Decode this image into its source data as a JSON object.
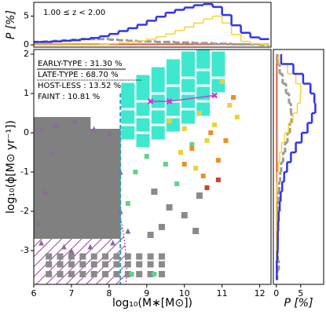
{
  "chart_data": [
    {
      "type": "scatter",
      "xlabel": "log₁₀(M∗[M⊙])",
      "ylabel": "log₁₀(ϕ[M⊙ yr⁻¹])",
      "xlim": [
        6,
        12.3
      ],
      "ylim": [
        -3.86,
        2.12
      ],
      "xticks": [
        6,
        7,
        8,
        9,
        10,
        11,
        12
      ],
      "yticks": [
        -3,
        -2,
        -1,
        0,
        1,
        2
      ],
      "annotations": [
        "EARLY-TYPE : 31.30  %",
        "LATE-TYPE   : 68.70  %",
        "HOST-LESS  : 13.52 %",
        "FAINT          : 10.81  %"
      ],
      "vline": 8.3,
      "vline_color": "#1fa3c9",
      "series": [
        {
          "color": "#808080",
          "marker": "square",
          "size": 20,
          "x": [
            6.1,
            6.1,
            6.1,
            6.1,
            6.1,
            6.1,
            6.1,
            6.1,
            6.5,
            6.5,
            6.5,
            6.5,
            6.5,
            6.5,
            6.5,
            6.5,
            6.9,
            6.9,
            6.9,
            6.9,
            6.9,
            6.9,
            6.9,
            6.9,
            7.3,
            7.3,
            7.3,
            7.3,
            7.3,
            7.3,
            7.3,
            7.3,
            7.7,
            7.7,
            7.7,
            7.7,
            7.7,
            7.7,
            7.7,
            8.1,
            8.1,
            8.1,
            8.1,
            8.1,
            8.1,
            8.1
          ],
          "y": [
            -2.5,
            -2.1,
            -1.7,
            -1.3,
            -0.9,
            -0.5,
            -0.1,
            0.2,
            -2.5,
            -2.1,
            -1.7,
            -1.3,
            -0.9,
            -0.5,
            -0.1,
            0.2,
            -2.5,
            -2.1,
            -1.7,
            -1.3,
            -0.9,
            -0.5,
            -0.1,
            0.2,
            -2.5,
            -2.1,
            -1.7,
            -1.3,
            -0.9,
            -0.5,
            -0.1,
            0.2,
            -2.5,
            -2.1,
            -1.7,
            -1.3,
            -0.9,
            -0.5,
            -0.1,
            -2.5,
            -2.1,
            -1.7,
            -1.3,
            -0.9,
            -0.5,
            -0.1
          ]
        },
        {
          "color": "#8a8a8a",
          "marker": "square",
          "size": 8,
          "x": [
            6.4,
            6.7,
            7.0,
            7.3,
            7.6,
            7.9,
            8.2,
            8.5,
            8.8,
            9.1,
            9.4,
            6.4,
            6.7,
            7.0,
            7.3,
            7.6,
            7.9,
            8.2,
            8.5,
            8.8,
            9.1,
            9.4,
            6.4,
            6.7,
            7.0,
            7.3,
            7.6,
            7.9,
            8.2,
            8.5,
            8.8,
            9.1,
            9.4,
            9.2,
            9.6,
            10.0,
            9.4,
            10.4,
            9.1,
            10.3
          ],
          "y": [
            -3.15,
            -3.15,
            -3.15,
            -3.15,
            -3.15,
            -3.15,
            -3.15,
            -3.15,
            -3.15,
            -3.15,
            -3.15,
            -3.35,
            -3.35,
            -3.35,
            -3.35,
            -3.35,
            -3.35,
            -3.35,
            -3.35,
            -3.35,
            -3.35,
            -3.35,
            -3.6,
            -3.6,
            -3.6,
            -3.6,
            -3.6,
            -3.6,
            -3.6,
            -3.6,
            -3.6,
            -3.6,
            -3.6,
            -1.5,
            -1.9,
            -2.1,
            -2.4,
            -1.6,
            -2.6,
            -2.5
          ]
        },
        {
          "color": "#8b6a99",
          "marker": "triangle",
          "size": 7,
          "x": [
            6.2,
            6.6,
            7.1,
            7.6,
            8.0,
            6.5,
            6.3,
            7.0,
            7.5,
            8.1,
            6.2,
            8.3,
            8.3,
            6.8,
            8.5,
            6.1
          ],
          "y": [
            0.1,
            0.2,
            0.3,
            0.1,
            0.0,
            -0.5,
            -1.5,
            -3.0,
            -2.9,
            -2.8,
            -2.8,
            -2.0,
            -1.0,
            -2.9,
            -2.5,
            -2.3
          ]
        },
        {
          "color": "#3ee8cf",
          "marker": "square",
          "size": 17,
          "x": [
            8.5,
            8.5,
            8.5,
            8.5,
            8.9,
            8.9,
            8.9,
            8.9,
            8.9,
            9.3,
            9.3,
            9.3,
            9.3,
            9.3,
            9.7,
            9.7,
            9.7,
            9.7,
            9.7,
            10.1,
            10.1,
            10.1,
            10.1,
            10.1,
            10.5,
            10.5,
            10.5,
            10.5,
            10.5,
            10.9,
            10.9,
            10.9
          ],
          "y": [
            0.0,
            0.4,
            0.8,
            1.1,
            -0.2,
            0.2,
            0.6,
            1.0,
            1.3,
            0.0,
            0.4,
            0.8,
            1.2,
            1.5,
            0.2,
            0.6,
            1.0,
            1.4,
            1.7,
            0.4,
            0.8,
            1.2,
            1.6,
            1.9,
            0.6,
            1.0,
            1.4,
            1.8,
            2.0,
            1.2,
            1.6,
            1.9
          ]
        },
        {
          "color": "#5ed48a",
          "marker": "square",
          "size": 6,
          "x": [
            9.0,
            8.7,
            9.5,
            8.5,
            10.2,
            9.8,
            8.6,
            9.2
          ],
          "y": [
            -0.6,
            -1.0,
            -0.8,
            -1.8,
            -0.3,
            -1.3,
            -3.6,
            -3.6
          ]
        },
        {
          "color": "#e8d23a",
          "marker": "square",
          "size": 6,
          "x": [
            9.6,
            10.0,
            10.4,
            10.8,
            11.2,
            9.9,
            10.6,
            11.0,
            10.3,
            11.4
          ],
          "y": [
            0.3,
            0.1,
            0.5,
            0.2,
            0.7,
            -0.5,
            -0.2,
            1.3,
            -0.9,
            0.4
          ]
        },
        {
          "color": "#e8902a",
          "marker": "square",
          "size": 6,
          "x": [
            10.2,
            10.7,
            10.9,
            11.1,
            10.5,
            11.3,
            10.0
          ],
          "y": [
            -0.4,
            0.0,
            -0.7,
            -0.2,
            -1.1,
            0.9,
            -0.8
          ]
        },
        {
          "color": "#d0402a",
          "marker": "square",
          "size": 6,
          "x": [
            10.6,
            10.9
          ],
          "y": [
            -1.4,
            -1.2
          ]
        },
        {
          "color": "#c83cd8",
          "marker": "cross",
          "size": 6,
          "line": true,
          "x": [
            9.1,
            9.6,
            10.8
          ],
          "y": [
            0.8,
            0.8,
            0.95
          ]
        }
      ]
    },
    {
      "type": "histogram",
      "orientation": "vertical",
      "ylabel": "P [%]",
      "annotation": "1.00 ≤ z < 2.00",
      "xlim": [
        6,
        12.3
      ],
      "ylim": [
        -0.4,
        7.4
      ],
      "yticks": [
        0,
        5
      ],
      "bins": [
        6,
        6.25,
        6.5,
        6.75,
        7,
        7.25,
        7.5,
        7.75,
        8,
        8.25,
        8.5,
        8.75,
        9,
        9.25,
        9.5,
        9.75,
        10,
        10.25,
        10.5,
        10.75,
        11,
        11.25,
        11.5,
        11.75,
        12,
        12.25
      ],
      "series": [
        {
          "color": "#e05a3a",
          "dash": false,
          "width": 2,
          "values": [
            0.1,
            0.1,
            0.1,
            0.1,
            0.1,
            0.1,
            0.1,
            0.1,
            0.1,
            0.1,
            0.1,
            0.1,
            0.1,
            0.1,
            0.1,
            0.1,
            0.1,
            0.1,
            0.1,
            0.1,
            0.1,
            0.1,
            0.1,
            0.1,
            0.1
          ]
        },
        {
          "color": "#9a9a9a",
          "dash": true,
          "width": 3,
          "values": [
            0.5,
            0.6,
            0.7,
            0.8,
            0.9,
            1.0,
            1.0,
            1.0,
            0.9,
            0.8,
            0.7,
            0.6,
            0.6,
            0.5,
            0.5,
            0.4,
            0.4,
            0.3,
            0.3,
            0.2,
            0.2,
            0.1,
            0.1,
            0.1,
            0.0
          ]
        },
        {
          "color": "#f5d33a",
          "dash": false,
          "width": 1.5,
          "values": [
            0,
            0,
            0,
            0,
            0,
            0,
            0,
            0.1,
            0.2,
            0.3,
            0.5,
            0.7,
            1.0,
            1.4,
            1.9,
            2.5,
            3.1,
            3.8,
            4.5,
            5.0,
            3.8,
            1.8,
            0.6,
            0.2,
            0.1
          ]
        },
        {
          "color": "#3333ee",
          "dash": false,
          "width": 2.5,
          "values": [
            0.5,
            0.5,
            0.6,
            0.7,
            0.8,
            1.0,
            1.2,
            1.5,
            1.9,
            2.4,
            2.9,
            3.5,
            4.2,
            4.9,
            5.6,
            6.1,
            6.5,
            6.9,
            7.1,
            6.6,
            5.2,
            3.4,
            2.1,
            1.3,
            1.0
          ]
        }
      ]
    },
    {
      "type": "histogram",
      "orientation": "horizontal",
      "xlabel": "P [%]",
      "xlim": [
        -0.6,
        9.7
      ],
      "ylim": [
        -3.86,
        2.12
      ],
      "xticks": [
        0,
        5
      ],
      "bins": [
        -3.75,
        -3.5,
        -3.25,
        -3,
        -2.75,
        -2.5,
        -2.25,
        -2,
        -1.75,
        -1.5,
        -1.25,
        -1,
        -0.75,
        -0.5,
        -0.25,
        0,
        0.25,
        0.5,
        0.75,
        1,
        1.25,
        1.5,
        1.75,
        2
      ],
      "series": [
        {
          "color": "#e05a3a",
          "dash": false,
          "width": 2,
          "values": [
            0.1,
            0.1,
            0.1,
            0.1,
            0.1,
            0.1,
            0.1,
            0.1,
            0.1,
            0.1,
            0.1,
            0.1,
            0.1,
            0.1,
            0.1,
            0.1,
            0.1,
            0.1,
            0.1,
            0.1,
            0.1,
            0.1,
            0.1
          ]
        },
        {
          "color": "#9a9a9a",
          "dash": true,
          "width": 3,
          "values": [
            0.2,
            0.5,
            0.3,
            0.2,
            0.3,
            0.3,
            0.3,
            0.4,
            0.5,
            0.6,
            0.8,
            1.0,
            1.4,
            1.8,
            2.3,
            2.8,
            3.1,
            3.0,
            2.6,
            2.0,
            1.3,
            0.7,
            0.2
          ]
        },
        {
          "color": "#f5d33a",
          "dash": false,
          "width": 1.5,
          "values": [
            0,
            0,
            0,
            0,
            0,
            0,
            0,
            0,
            0.1,
            0.1,
            0.2,
            0.4,
            0.7,
            1.1,
            1.7,
            2.5,
            3.4,
            4.3,
            4.9,
            5.0,
            4.0,
            2.3,
            0.5
          ]
        },
        {
          "color": "#3333ee",
          "dash": false,
          "width": 2.5,
          "values": [
            0.1,
            0.1,
            0.2,
            0.3,
            0.3,
            0.4,
            0.5,
            0.7,
            0.9,
            1.2,
            1.6,
            2.2,
            3.0,
            4.0,
            5.2,
            6.4,
            7.3,
            8.0,
            7.8,
            7.0,
            5.5,
            3.5,
            1.0
          ]
        }
      ]
    }
  ]
}
